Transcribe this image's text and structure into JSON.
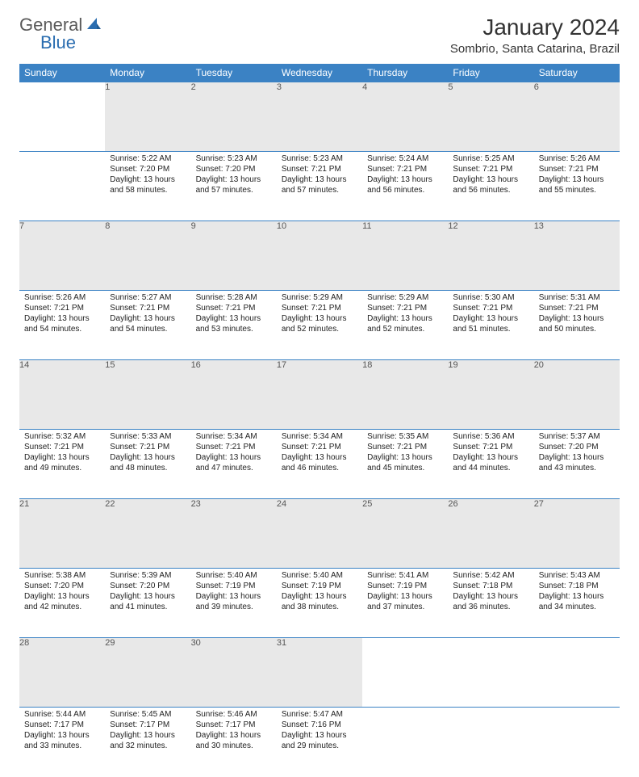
{
  "logo": {
    "text1": "General",
    "text2": "Blue",
    "color1": "#6a6a6a",
    "color2": "#2a6db0",
    "icon_color": "#2a6db0"
  },
  "title": "January 2024",
  "location": "Sombrio, Santa Catarina, Brazil",
  "colors": {
    "header_bg": "#3b82c4",
    "header_fg": "#ffffff",
    "daynum_bg": "#e8e8e8",
    "border": "#3b82c4",
    "text": "#222222"
  },
  "fonts": {
    "title_size": 28,
    "location_size": 15,
    "header_size": 12,
    "daynum_size": 11,
    "cell_size": 10
  },
  "day_headers": [
    "Sunday",
    "Monday",
    "Tuesday",
    "Wednesday",
    "Thursday",
    "Friday",
    "Saturday"
  ],
  "weeks": [
    [
      null,
      {
        "n": "1",
        "sr": "5:22 AM",
        "ss": "7:20 PM",
        "dl": "13 hours and 58 minutes."
      },
      {
        "n": "2",
        "sr": "5:23 AM",
        "ss": "7:20 PM",
        "dl": "13 hours and 57 minutes."
      },
      {
        "n": "3",
        "sr": "5:23 AM",
        "ss": "7:21 PM",
        "dl": "13 hours and 57 minutes."
      },
      {
        "n": "4",
        "sr": "5:24 AM",
        "ss": "7:21 PM",
        "dl": "13 hours and 56 minutes."
      },
      {
        "n": "5",
        "sr": "5:25 AM",
        "ss": "7:21 PM",
        "dl": "13 hours and 56 minutes."
      },
      {
        "n": "6",
        "sr": "5:26 AM",
        "ss": "7:21 PM",
        "dl": "13 hours and 55 minutes."
      }
    ],
    [
      {
        "n": "7",
        "sr": "5:26 AM",
        "ss": "7:21 PM",
        "dl": "13 hours and 54 minutes."
      },
      {
        "n": "8",
        "sr": "5:27 AM",
        "ss": "7:21 PM",
        "dl": "13 hours and 54 minutes."
      },
      {
        "n": "9",
        "sr": "5:28 AM",
        "ss": "7:21 PM",
        "dl": "13 hours and 53 minutes."
      },
      {
        "n": "10",
        "sr": "5:29 AM",
        "ss": "7:21 PM",
        "dl": "13 hours and 52 minutes."
      },
      {
        "n": "11",
        "sr": "5:29 AM",
        "ss": "7:21 PM",
        "dl": "13 hours and 52 minutes."
      },
      {
        "n": "12",
        "sr": "5:30 AM",
        "ss": "7:21 PM",
        "dl": "13 hours and 51 minutes."
      },
      {
        "n": "13",
        "sr": "5:31 AM",
        "ss": "7:21 PM",
        "dl": "13 hours and 50 minutes."
      }
    ],
    [
      {
        "n": "14",
        "sr": "5:32 AM",
        "ss": "7:21 PM",
        "dl": "13 hours and 49 minutes."
      },
      {
        "n": "15",
        "sr": "5:33 AM",
        "ss": "7:21 PM",
        "dl": "13 hours and 48 minutes."
      },
      {
        "n": "16",
        "sr": "5:34 AM",
        "ss": "7:21 PM",
        "dl": "13 hours and 47 minutes."
      },
      {
        "n": "17",
        "sr": "5:34 AM",
        "ss": "7:21 PM",
        "dl": "13 hours and 46 minutes."
      },
      {
        "n": "18",
        "sr": "5:35 AM",
        "ss": "7:21 PM",
        "dl": "13 hours and 45 minutes."
      },
      {
        "n": "19",
        "sr": "5:36 AM",
        "ss": "7:21 PM",
        "dl": "13 hours and 44 minutes."
      },
      {
        "n": "20",
        "sr": "5:37 AM",
        "ss": "7:20 PM",
        "dl": "13 hours and 43 minutes."
      }
    ],
    [
      {
        "n": "21",
        "sr": "5:38 AM",
        "ss": "7:20 PM",
        "dl": "13 hours and 42 minutes."
      },
      {
        "n": "22",
        "sr": "5:39 AM",
        "ss": "7:20 PM",
        "dl": "13 hours and 41 minutes."
      },
      {
        "n": "23",
        "sr": "5:40 AM",
        "ss": "7:19 PM",
        "dl": "13 hours and 39 minutes."
      },
      {
        "n": "24",
        "sr": "5:40 AM",
        "ss": "7:19 PM",
        "dl": "13 hours and 38 minutes."
      },
      {
        "n": "25",
        "sr": "5:41 AM",
        "ss": "7:19 PM",
        "dl": "13 hours and 37 minutes."
      },
      {
        "n": "26",
        "sr": "5:42 AM",
        "ss": "7:18 PM",
        "dl": "13 hours and 36 minutes."
      },
      {
        "n": "27",
        "sr": "5:43 AM",
        "ss": "7:18 PM",
        "dl": "13 hours and 34 minutes."
      }
    ],
    [
      {
        "n": "28",
        "sr": "5:44 AM",
        "ss": "7:17 PM",
        "dl": "13 hours and 33 minutes."
      },
      {
        "n": "29",
        "sr": "5:45 AM",
        "ss": "7:17 PM",
        "dl": "13 hours and 32 minutes."
      },
      {
        "n": "30",
        "sr": "5:46 AM",
        "ss": "7:17 PM",
        "dl": "13 hours and 30 minutes."
      },
      {
        "n": "31",
        "sr": "5:47 AM",
        "ss": "7:16 PM",
        "dl": "13 hours and 29 minutes."
      },
      null,
      null,
      null
    ]
  ],
  "labels": {
    "sunrise": "Sunrise:",
    "sunset": "Sunset:",
    "daylight": "Daylight:"
  }
}
